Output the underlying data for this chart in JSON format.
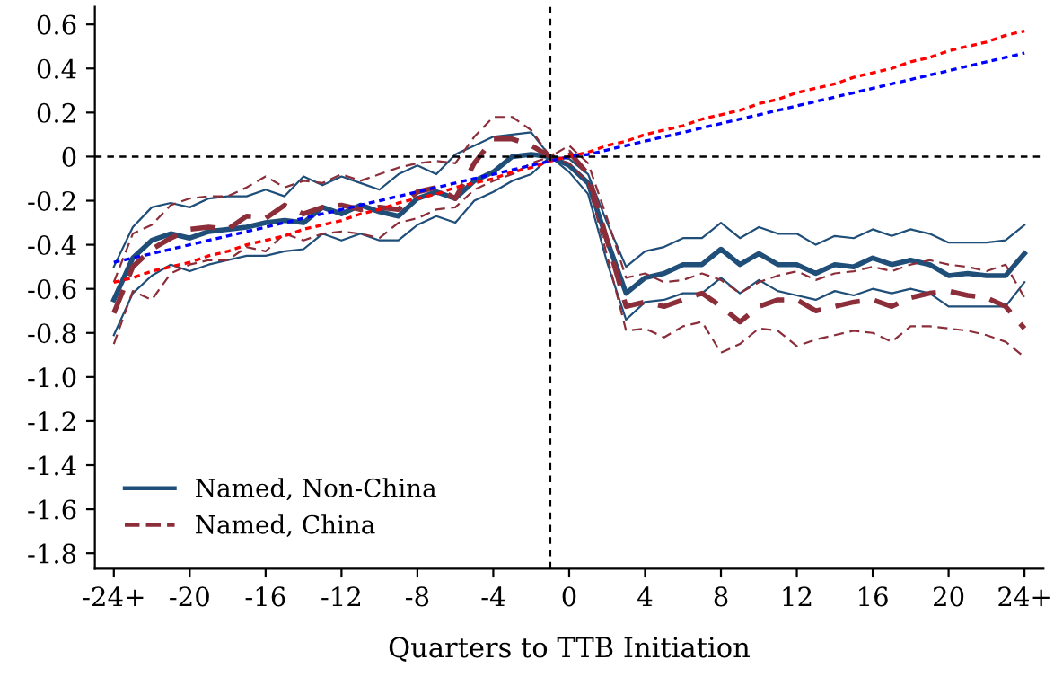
{
  "chart_data": {
    "type": "line",
    "xlabel": "Quarters to TTB Initiation",
    "x": [
      -24,
      -23,
      -22,
      -21,
      -20,
      -19,
      -18,
      -17,
      -16,
      -15,
      -14,
      -13,
      -12,
      -11,
      -10,
      -9,
      -8,
      -7,
      -6,
      -5,
      -4,
      -3,
      -2,
      -1,
      0,
      1,
      2,
      3,
      4,
      5,
      6,
      7,
      8,
      9,
      10,
      11,
      12,
      13,
      14,
      15,
      16,
      17,
      18,
      19,
      20,
      21,
      22,
      23,
      24
    ],
    "xlim": [
      -25,
      25
    ],
    "xticks": [
      {
        "value": -24,
        "label": "-24+"
      },
      -20,
      -16,
      -12,
      -8,
      -4,
      0,
      4,
      8,
      12,
      16,
      20,
      {
        "value": 24,
        "label": "24+"
      }
    ],
    "ylim": [
      -1.87,
      0.68
    ],
    "yticks": [
      0.6,
      0.4,
      0.2,
      0,
      -0.2,
      -0.4,
      -0.6,
      -0.8,
      {
        "value": -1.0,
        "label": "-1.0"
      },
      -1.2,
      -1.4,
      -1.6,
      -1.8
    ],
    "grid": false,
    "legend": "bottom left",
    "marker": "none",
    "series": [
      {
        "name": "Named, Non-China",
        "color": "#1f4e79",
        "line_style": "solid",
        "values": [
          -0.65,
          -0.46,
          -0.38,
          -0.35,
          -0.37,
          -0.34,
          -0.33,
          -0.32,
          -0.3,
          -0.29,
          -0.3,
          -0.23,
          -0.26,
          -0.22,
          -0.25,
          -0.27,
          -0.19,
          -0.16,
          -0.19,
          -0.11,
          -0.07,
          0.0,
          0.01,
          0,
          -0.04,
          -0.12,
          -0.38,
          -0.62,
          -0.55,
          -0.53,
          -0.49,
          -0.49,
          -0.42,
          -0.49,
          -0.44,
          -0.49,
          -0.49,
          -0.53,
          -0.49,
          -0.5,
          -0.46,
          -0.49,
          -0.47,
          -0.49,
          -0.54,
          -0.53,
          -0.54,
          -0.54,
          -0.44
        ]
      },
      {
        "color": "#1f4e79",
        "line_style": "solid",
        "values": [
          -0.5,
          -0.32,
          -0.23,
          -0.21,
          -0.23,
          -0.19,
          -0.18,
          -0.18,
          -0.15,
          -0.18,
          -0.09,
          -0.13,
          -0.09,
          -0.12,
          -0.15,
          -0.08,
          -0.04,
          -0.08,
          0.01,
          0.05,
          0.09,
          0.1,
          0.11,
          0,
          -0.01,
          -0.08,
          -0.3,
          -0.5,
          -0.43,
          -0.41,
          -0.37,
          -0.37,
          -0.3,
          -0.37,
          -0.32,
          -0.35,
          -0.35,
          -0.4,
          -0.36,
          -0.37,
          -0.33,
          -0.36,
          -0.33,
          -0.35,
          -0.39,
          -0.39,
          -0.39,
          -0.38,
          -0.31
        ]
      },
      {
        "color": "#1f4e79",
        "line_style": "solid",
        "values": [
          -0.81,
          -0.62,
          -0.54,
          -0.49,
          -0.52,
          -0.49,
          -0.47,
          -0.45,
          -0.45,
          -0.43,
          -0.42,
          -0.35,
          -0.38,
          -0.35,
          -0.38,
          -0.38,
          -0.31,
          -0.27,
          -0.3,
          -0.2,
          -0.16,
          -0.11,
          -0.08,
          0,
          -0.07,
          -0.17,
          -0.48,
          -0.74,
          -0.66,
          -0.65,
          -0.62,
          -0.62,
          -0.55,
          -0.62,
          -0.56,
          -0.61,
          -0.63,
          -0.65,
          -0.61,
          -0.63,
          -0.6,
          -0.62,
          -0.6,
          -0.62,
          -0.68,
          -0.68,
          -0.68,
          -0.68,
          -0.57
        ]
      },
      {
        "name": "Named, China",
        "color": "#8b2e3a",
        "line_style": "dashed",
        "values": [
          -0.71,
          -0.5,
          -0.42,
          -0.37,
          -0.33,
          -0.32,
          -0.33,
          -0.27,
          -0.28,
          -0.22,
          -0.26,
          -0.23,
          -0.22,
          -0.24,
          -0.23,
          -0.24,
          -0.16,
          -0.14,
          -0.19,
          -0.03,
          0.08,
          0.08,
          0.05,
          0,
          0.02,
          -0.08,
          -0.38,
          -0.68,
          -0.66,
          -0.68,
          -0.65,
          -0.62,
          -0.68,
          -0.75,
          -0.68,
          -0.65,
          -0.65,
          -0.7,
          -0.68,
          -0.66,
          -0.65,
          -0.68,
          -0.64,
          -0.62,
          -0.61,
          -0.63,
          -0.64,
          -0.68,
          -0.78
        ]
      },
      {
        "color": "#8b2e3a",
        "line_style": "dashed",
        "values": [
          -0.57,
          -0.35,
          -0.31,
          -0.22,
          -0.19,
          -0.18,
          -0.18,
          -0.14,
          -0.09,
          -0.14,
          -0.11,
          -0.12,
          -0.08,
          -0.11,
          -0.08,
          -0.05,
          -0.03,
          -0.02,
          -0.03,
          0.09,
          0.18,
          0.18,
          0.12,
          0,
          0.05,
          -0.03,
          -0.28,
          -0.55,
          -0.53,
          -0.57,
          -0.56,
          -0.53,
          -0.56,
          -0.62,
          -0.57,
          -0.54,
          -0.52,
          -0.56,
          -0.53,
          -0.52,
          -0.5,
          -0.52,
          -0.49,
          -0.47,
          -0.49,
          -0.5,
          -0.52,
          -0.49,
          -0.64
        ]
      },
      {
        "color": "#8b2e3a",
        "line_style": "dashed",
        "values": [
          -0.85,
          -0.61,
          -0.65,
          -0.53,
          -0.49,
          -0.47,
          -0.47,
          -0.41,
          -0.43,
          -0.35,
          -0.38,
          -0.35,
          -0.34,
          -0.35,
          -0.37,
          -0.3,
          -0.28,
          -0.24,
          -0.23,
          -0.15,
          -0.11,
          -0.08,
          -0.03,
          0,
          -0.03,
          -0.12,
          -0.45,
          -0.79,
          -0.78,
          -0.82,
          -0.77,
          -0.75,
          -0.89,
          -0.85,
          -0.78,
          -0.79,
          -0.86,
          -0.83,
          -0.81,
          -0.79,
          -0.8,
          -0.84,
          -0.77,
          -0.77,
          -0.78,
          -0.79,
          -0.81,
          -0.84,
          -0.91
        ]
      },
      {
        "color": "#ff0000",
        "line_style": "dotted",
        "values": [
          -0.57,
          -0.55,
          -0.52,
          -0.5,
          -0.48,
          -0.45,
          -0.43,
          -0.4,
          -0.38,
          -0.36,
          -0.33,
          -0.31,
          -0.29,
          -0.26,
          -0.24,
          -0.21,
          -0.19,
          -0.17,
          -0.14,
          -0.12,
          -0.1,
          -0.07,
          -0.05,
          -0.02,
          0,
          0.02,
          0.05,
          0.07,
          0.1,
          0.12,
          0.14,
          0.17,
          0.19,
          0.21,
          0.24,
          0.26,
          0.29,
          0.31,
          0.33,
          0.36,
          0.38,
          0.4,
          0.43,
          0.45,
          0.48,
          0.5,
          0.52,
          0.55,
          0.57
        ]
      },
      {
        "color": "#0000ff",
        "line_style": "dotted",
        "values": [
          -0.48,
          -0.46,
          -0.44,
          -0.42,
          -0.4,
          -0.38,
          -0.36,
          -0.34,
          -0.32,
          -0.3,
          -0.28,
          -0.26,
          -0.24,
          -0.22,
          -0.2,
          -0.18,
          -0.16,
          -0.14,
          -0.12,
          -0.1,
          -0.08,
          -0.06,
          -0.04,
          -0.02,
          0,
          0.01,
          0.03,
          0.05,
          0.07,
          0.09,
          0.11,
          0.13,
          0.15,
          0.17,
          0.19,
          0.21,
          0.23,
          0.25,
          0.27,
          0.29,
          0.31,
          0.33,
          0.35,
          0.37,
          0.39,
          0.41,
          0.43,
          0.45,
          0.47
        ]
      }
    ],
    "ref_lines": [
      {
        "axis": "y",
        "value": 0,
        "color": "#000000",
        "line_style": "dashed"
      },
      {
        "axis": "x",
        "value": -1,
        "color": "#000000",
        "line_style": "dashed"
      }
    ]
  }
}
